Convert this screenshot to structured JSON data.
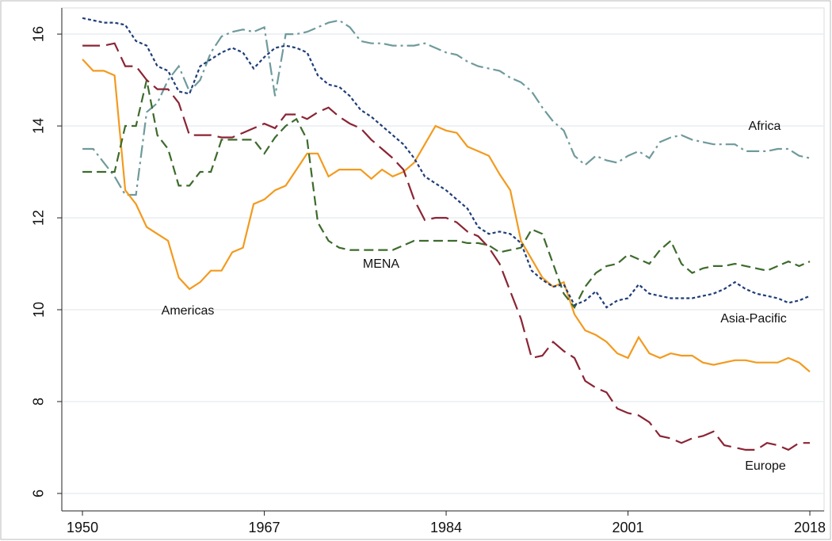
{
  "chart_data": {
    "type": "line",
    "x": [
      1950,
      1951,
      1952,
      1953,
      1954,
      1955,
      1956,
      1957,
      1958,
      1959,
      1960,
      1961,
      1962,
      1963,
      1964,
      1965,
      1966,
      1967,
      1968,
      1969,
      1970,
      1971,
      1972,
      1973,
      1974,
      1975,
      1976,
      1977,
      1978,
      1979,
      1980,
      1981,
      1982,
      1983,
      1984,
      1985,
      1986,
      1987,
      1988,
      1989,
      1990,
      1991,
      1992,
      1993,
      1994,
      1995,
      1996,
      1997,
      1998,
      1999,
      2000,
      2001,
      2002,
      2003,
      2004,
      2005,
      2006,
      2007,
      2008,
      2009,
      2010,
      2011,
      2012,
      2013,
      2014,
      2015,
      2016,
      2017,
      2018
    ],
    "series": [
      {
        "name": "Africa",
        "color": "#6f9a9c",
        "dash": "16,5,3,5",
        "values": [
          13.5,
          13.5,
          13.2,
          12.9,
          12.5,
          12.5,
          14.3,
          14.5,
          15.0,
          15.3,
          14.75,
          15.0,
          15.6,
          15.95,
          16.05,
          16.1,
          16.05,
          16.15,
          14.65,
          16.0,
          16.0,
          16.05,
          16.15,
          16.25,
          16.3,
          16.15,
          15.85,
          15.8,
          15.8,
          15.75,
          15.75,
          15.75,
          15.8,
          15.7,
          15.6,
          15.55,
          15.4,
          15.3,
          15.25,
          15.2,
          15.05,
          14.95,
          14.75,
          14.4,
          14.1,
          13.9,
          13.35,
          13.15,
          13.35,
          13.25,
          13.2,
          13.35,
          13.45,
          13.3,
          13.65,
          13.75,
          13.8,
          13.7,
          13.65,
          13.6,
          13.6,
          13.6,
          13.45,
          13.45,
          13.45,
          13.5,
          13.5,
          13.35,
          13.3
        ]
      },
      {
        "name": "Americas",
        "color": "#f39a1e",
        "dash": "none",
        "values": [
          15.45,
          15.2,
          15.2,
          15.1,
          12.6,
          12.3,
          11.8,
          11.65,
          11.5,
          10.7,
          10.45,
          10.6,
          10.85,
          10.85,
          11.25,
          11.35,
          12.3,
          12.4,
          12.6,
          12.7,
          13.05,
          13.4,
          13.4,
          12.9,
          13.05,
          13.05,
          13.05,
          12.85,
          13.05,
          12.9,
          13.0,
          13.2,
          13.6,
          14.0,
          13.9,
          13.85,
          13.55,
          13.45,
          13.35,
          12.95,
          12.6,
          11.5,
          11.1,
          10.7,
          10.5,
          10.6,
          9.9,
          9.55,
          9.45,
          9.3,
          9.05,
          8.95,
          9.4,
          9.05,
          8.95,
          9.05,
          9.0,
          9.0,
          8.85,
          8.8,
          8.85,
          8.9,
          8.9,
          8.85,
          8.85,
          8.85,
          8.95,
          8.85,
          8.65
        ]
      },
      {
        "name": "MENA",
        "color": "#3d6b2c",
        "dash": "12,6",
        "values": [
          13.0,
          13.0,
          13.0,
          13.0,
          14.0,
          14.0,
          15.0,
          13.8,
          13.5,
          12.7,
          12.7,
          13.0,
          13.0,
          13.7,
          13.7,
          13.7,
          13.7,
          13.4,
          13.75,
          14.0,
          14.15,
          13.7,
          11.9,
          11.5,
          11.35,
          11.3,
          11.3,
          11.3,
          11.3,
          11.3,
          11.4,
          11.5,
          11.5,
          11.5,
          11.5,
          11.5,
          11.45,
          11.45,
          11.4,
          11.25,
          11.3,
          11.35,
          11.75,
          11.65,
          11.0,
          10.35,
          10.05,
          10.5,
          10.8,
          10.95,
          11.0,
          11.2,
          11.1,
          11.0,
          11.3,
          11.5,
          11.0,
          10.8,
          10.9,
          10.95,
          10.95,
          11.0,
          10.95,
          10.9,
          10.85,
          10.95,
          11.05,
          10.95,
          11.05
        ]
      },
      {
        "name": "Asia-Pacific",
        "color": "#1f3d78",
        "dash": "4,3",
        "values": [
          16.35,
          16.3,
          16.25,
          16.25,
          16.2,
          15.85,
          15.75,
          15.3,
          15.2,
          14.75,
          14.7,
          15.3,
          15.45,
          15.6,
          15.7,
          15.6,
          15.25,
          15.5,
          15.7,
          15.75,
          15.7,
          15.6,
          15.1,
          14.9,
          14.85,
          14.65,
          14.35,
          14.2,
          14.0,
          13.8,
          13.6,
          13.3,
          12.9,
          12.75,
          12.6,
          12.4,
          12.2,
          11.8,
          11.65,
          11.7,
          11.65,
          11.45,
          10.85,
          10.65,
          10.5,
          10.55,
          10.1,
          10.2,
          10.4,
          10.05,
          10.2,
          10.25,
          10.55,
          10.35,
          10.3,
          10.25,
          10.25,
          10.25,
          10.3,
          10.35,
          10.45,
          10.6,
          10.45,
          10.35,
          10.3,
          10.25,
          10.15,
          10.2,
          10.3
        ]
      },
      {
        "name": "Europe",
        "color": "#8a2434",
        "dash": "22,8",
        "values": [
          15.75,
          15.75,
          15.75,
          15.8,
          15.3,
          15.3,
          15.0,
          14.8,
          14.8,
          14.5,
          13.8,
          13.8,
          13.8,
          13.75,
          13.75,
          13.85,
          13.95,
          14.05,
          13.95,
          14.25,
          14.25,
          14.15,
          14.3,
          14.4,
          14.2,
          14.05,
          13.95,
          13.7,
          13.5,
          13.3,
          13.05,
          12.4,
          11.95,
          12.0,
          12.0,
          11.9,
          11.7,
          11.6,
          11.35,
          11.0,
          10.4,
          9.8,
          8.95,
          9.0,
          9.3,
          9.1,
          8.95,
          8.45,
          8.3,
          8.2,
          7.85,
          7.75,
          7.7,
          7.55,
          7.25,
          7.2,
          7.1,
          7.2,
          7.25,
          7.35,
          7.05,
          7.0,
          6.95,
          6.95,
          7.1,
          7.05,
          6.95,
          7.1,
          7.1
        ]
      }
    ],
    "xlim": [
      1948.07,
      2019.33
    ],
    "ylim": [
      5.62,
      16.57
    ],
    "xticks": [
      1950,
      1967,
      1984,
      2001,
      2018
    ],
    "yticks": [
      6,
      8,
      10,
      12,
      14,
      16
    ],
    "grid": true
  }
}
